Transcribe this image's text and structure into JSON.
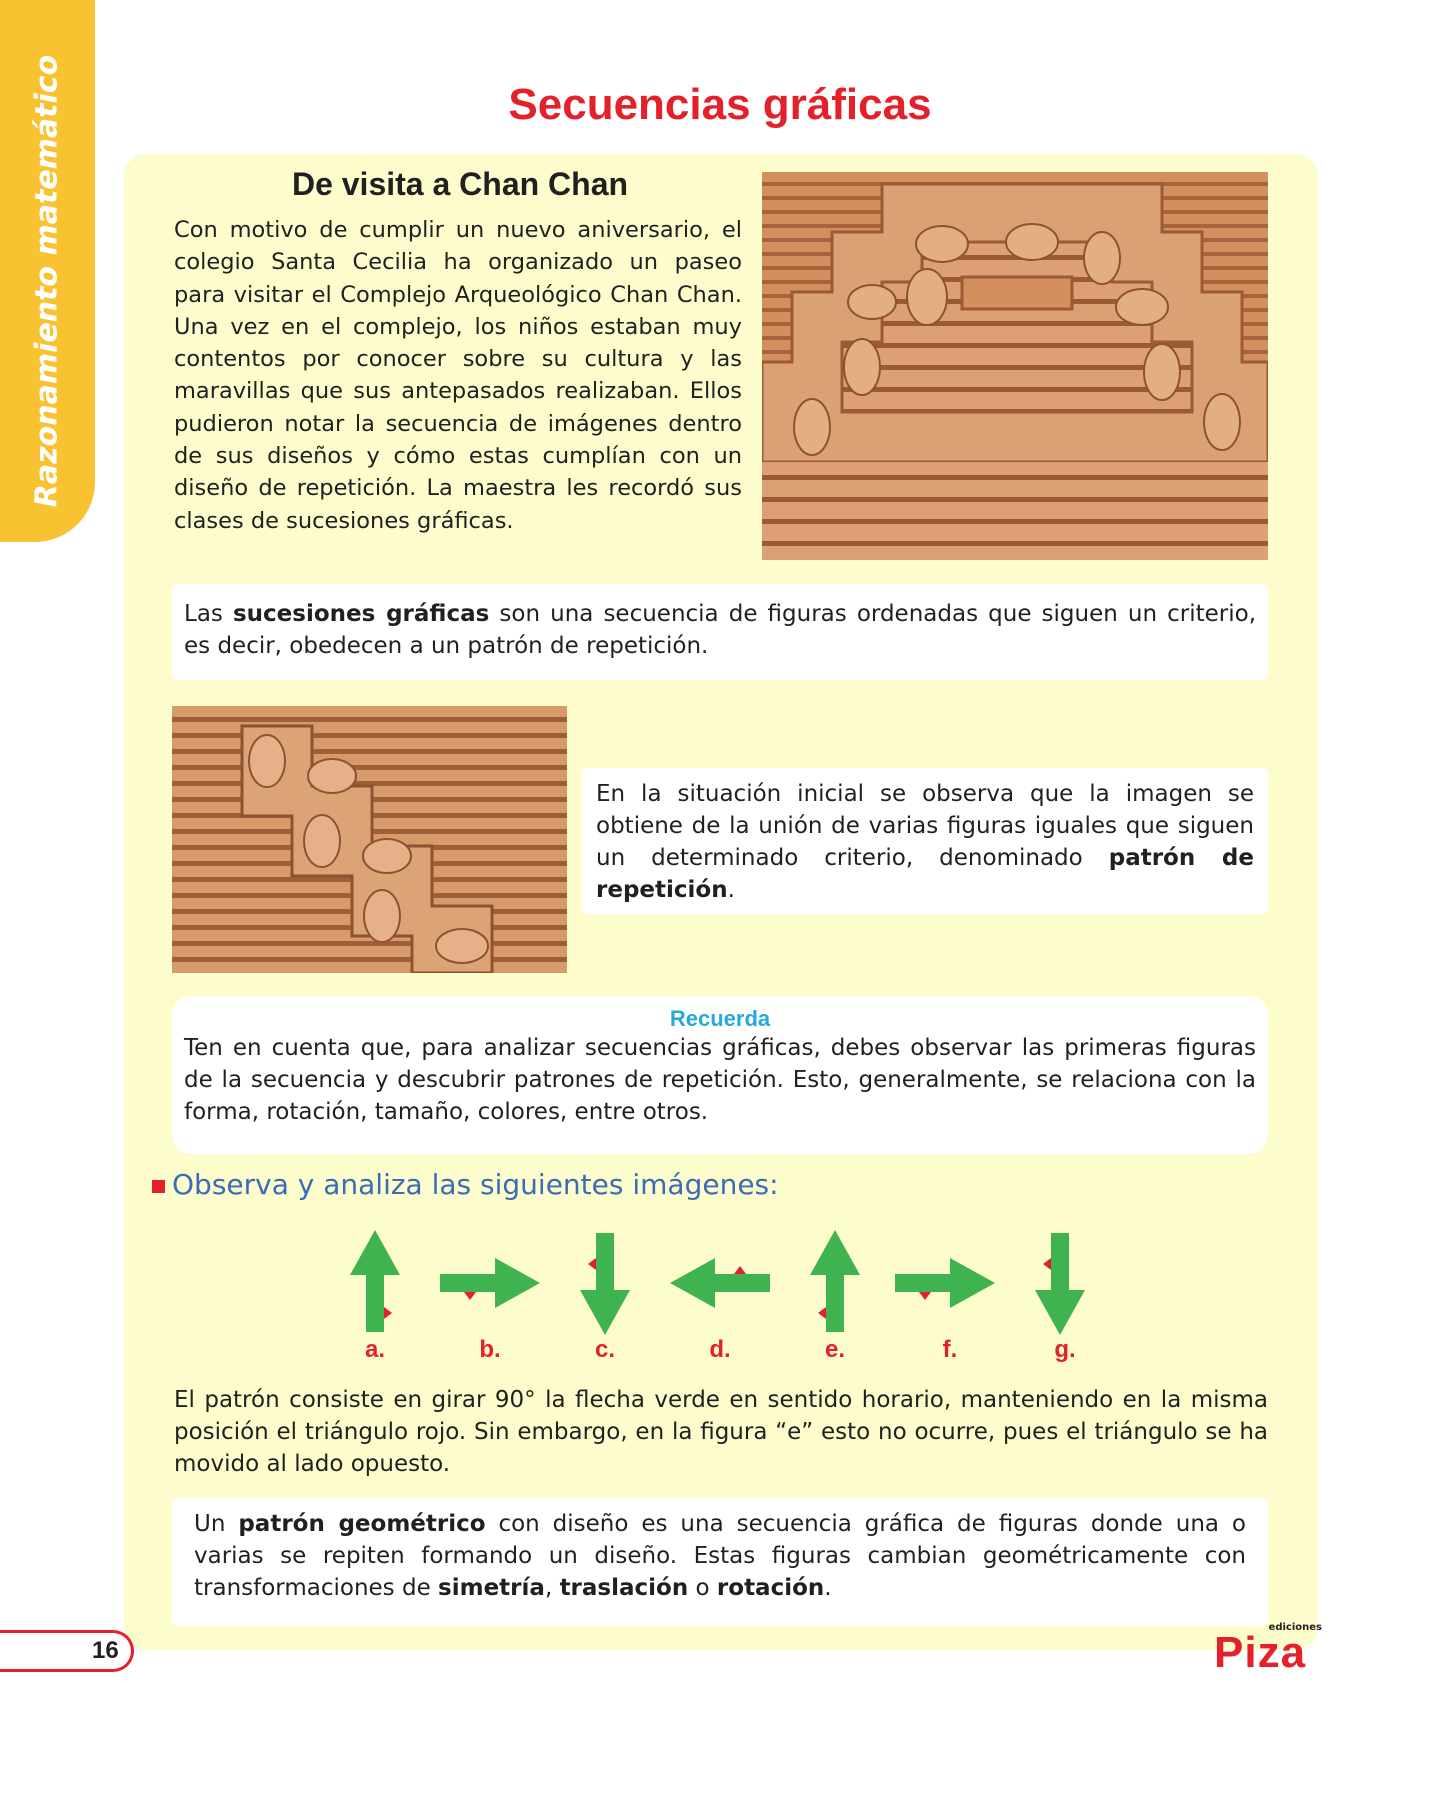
{
  "sidebar": {
    "subject": "Razonamiento matemático"
  },
  "page": {
    "title": "Secuencias gráficas",
    "number": "16"
  },
  "intro": {
    "heading": "De visita a Chan Chan",
    "text": "Con motivo de cumplir un nuevo aniversario, el colegio Santa Cecilia ha organizado un paseo para visitar el Complejo Arqueológico Chan Chan. Una vez en el complejo, los niños estaban muy contentos por conocer sobre su cultura y las maravillas que sus antepasados realizaban. Ellos pudieron notar la secuencia de imágenes dentro de sus diseños y cómo estas cumplían con un diseño de repetición. La maestra les recordó sus clases de sucesiones gráficas."
  },
  "definition": {
    "prefix": "Las ",
    "term": "sucesiones gráficas",
    "rest": " son una secuencia de figuras ordenadas que siguen un criterio, es decir, obedecen a un patrón de repetición."
  },
  "observation": {
    "text": "En la situación inicial se observa que la imagen se obtiene de la unión de varias figuras iguales que siguen un determinado criterio, denominado ",
    "term": "patrón de repetición",
    "end": "."
  },
  "recuerda": {
    "title": "Recuerda",
    "text": "Ten en cuenta que, para analizar secuencias gráficas, debes observar las primeras figuras de la secuencia y descubrir patrones de repetición. Esto, generalmente, se relaciona con la forma, rotación, tamaño, colores, entre otros."
  },
  "instruction": "Observa y analiza las siguientes imágenes:",
  "sequence": {
    "labels": [
      "a.",
      "b.",
      "c.",
      "d.",
      "e.",
      "f.",
      "g."
    ],
    "directions": [
      "up",
      "right",
      "down",
      "left",
      "up",
      "right",
      "down"
    ],
    "arrow_color": "#3fb34f",
    "marker_color": "#e4202a"
  },
  "explanation": "El patrón consiste en girar 90° la flecha verde en sentido horario, manteniendo en la misma posición el triángulo rojo. Sin embargo, en la figura “e” esto no ocurre, pues el triángulo se ha movido al lado opuesto.",
  "geometric": {
    "p1": "Un ",
    "t1": "patrón geométrico",
    "p2": " con diseño es una secuencia gráfica de figuras donde una o varias se repiten formando un diseño. Estas figuras cambian geométricamente con transformaciones de ",
    "t2": "simetría",
    "p3": ", ",
    "t3": "traslación",
    "p4": " o ",
    "t4": "rotación",
    "p5": "."
  },
  "logo": {
    "small": "ediciones",
    "big": "Piza"
  },
  "colors": {
    "accent": "#e4202a",
    "tab": "#f8c230",
    "panel": "#fdfccc",
    "highlight": "#29a8e0"
  }
}
